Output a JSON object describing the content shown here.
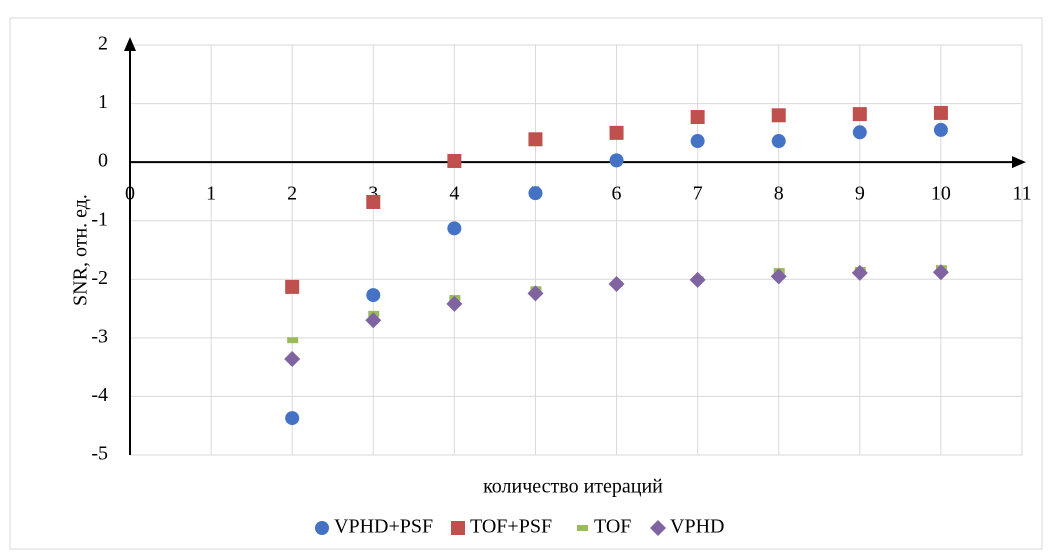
{
  "chart_data": {
    "type": "scatter",
    "xlabel": "количество итераций",
    "ylabel": "SNR, отн. ед.",
    "x": [
      2,
      3,
      4,
      5,
      6,
      7,
      8,
      9,
      10
    ],
    "series": [
      {
        "name": "VPHD+PSF",
        "color": "#4472c4",
        "marker": "circle",
        "values": [
          -4.37,
          -2.27,
          -1.13,
          -0.53,
          0.03,
          0.36,
          0.36,
          0.51,
          0.55
        ]
      },
      {
        "name": "TOF+PSF",
        "color": "#c0504d",
        "marker": "square",
        "values": [
          -2.13,
          -0.68,
          0.02,
          0.39,
          0.5,
          0.77,
          0.8,
          0.82,
          0.84
        ]
      },
      {
        "name": "TOF",
        "color": "#9bbb59",
        "marker": "dash",
        "values": [
          -3.04,
          -2.59,
          -2.32,
          -2.17,
          -2.08,
          -2.0,
          -1.86,
          -1.84,
          -1.81
        ]
      },
      {
        "name": "VPHD",
        "color": "#8064a2",
        "marker": "diamond",
        "values": [
          -3.36,
          -2.7,
          -2.42,
          -2.24,
          -2.08,
          -2.01,
          -1.95,
          -1.89,
          -1.88
        ]
      }
    ],
    "xlim": [
      0,
      11
    ],
    "xticks": [
      0,
      1,
      2,
      3,
      4,
      5,
      6,
      7,
      8,
      9,
      10,
      11
    ],
    "ylim": [
      -5,
      2
    ],
    "yticks": [
      -5,
      -4,
      -3,
      -2,
      -1,
      0,
      1,
      2
    ],
    "grid": true,
    "legend": "bottom"
  }
}
